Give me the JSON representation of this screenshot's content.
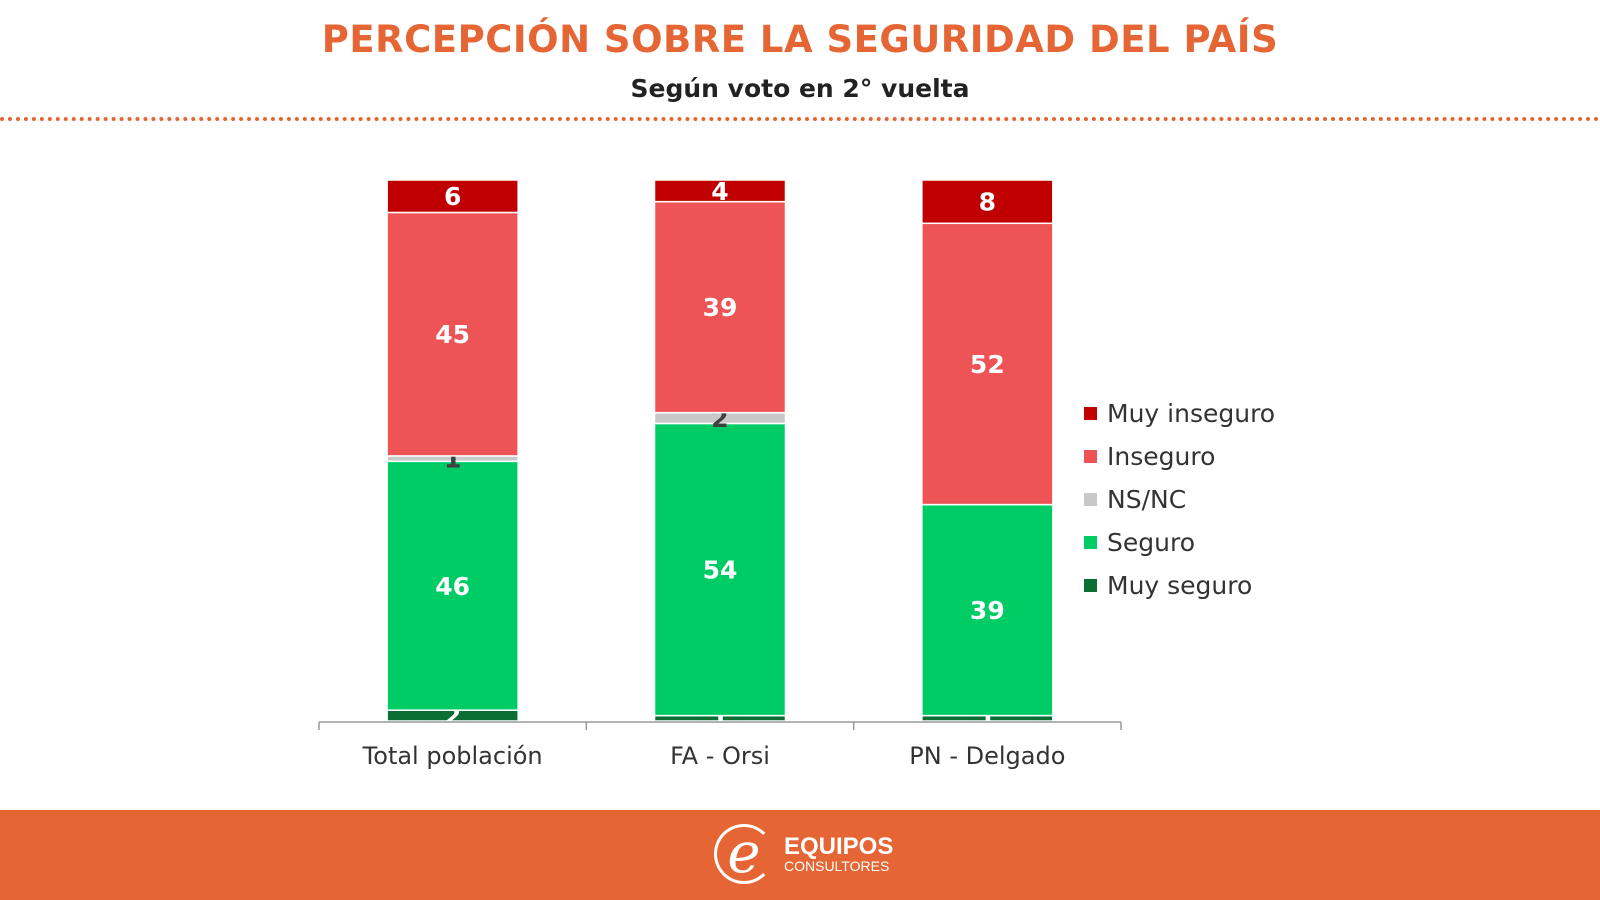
{
  "header": {
    "title": "PERCEPCIÓN SOBRE LA SEGURIDAD DEL PAÍS",
    "subtitle": "Según voto en 2° vuelta"
  },
  "chart_data": {
    "type": "bar",
    "stacked": true,
    "categories": [
      "Total población",
      "FA - Orsi",
      "PN - Delgado"
    ],
    "series": [
      {
        "name": "Muy seguro",
        "color": "#0B6E33",
        "values": [
          2,
          1,
          1
        ]
      },
      {
        "name": "Seguro",
        "color": "#00CC66",
        "values": [
          46,
          54,
          39
        ]
      },
      {
        "name": "NS/NC",
        "color": "#C8C8C8",
        "values": [
          1,
          2,
          0
        ]
      },
      {
        "name": "Inseguro",
        "color": "#EE5355",
        "values": [
          45,
          39,
          52
        ]
      },
      {
        "name": "Muy inseguro",
        "color": "#C00000",
        "values": [
          6,
          4,
          8
        ]
      }
    ],
    "ylim": [
      0,
      100
    ],
    "grid": false,
    "legend_position": "right",
    "legend_order": [
      "Muy inseguro",
      "Inseguro",
      "NS/NC",
      "Seguro",
      "Muy seguro"
    ]
  },
  "footer": {
    "logo_letter": "e",
    "logo_main": "EQUIPOS",
    "logo_sub": "CONSULTORES"
  }
}
